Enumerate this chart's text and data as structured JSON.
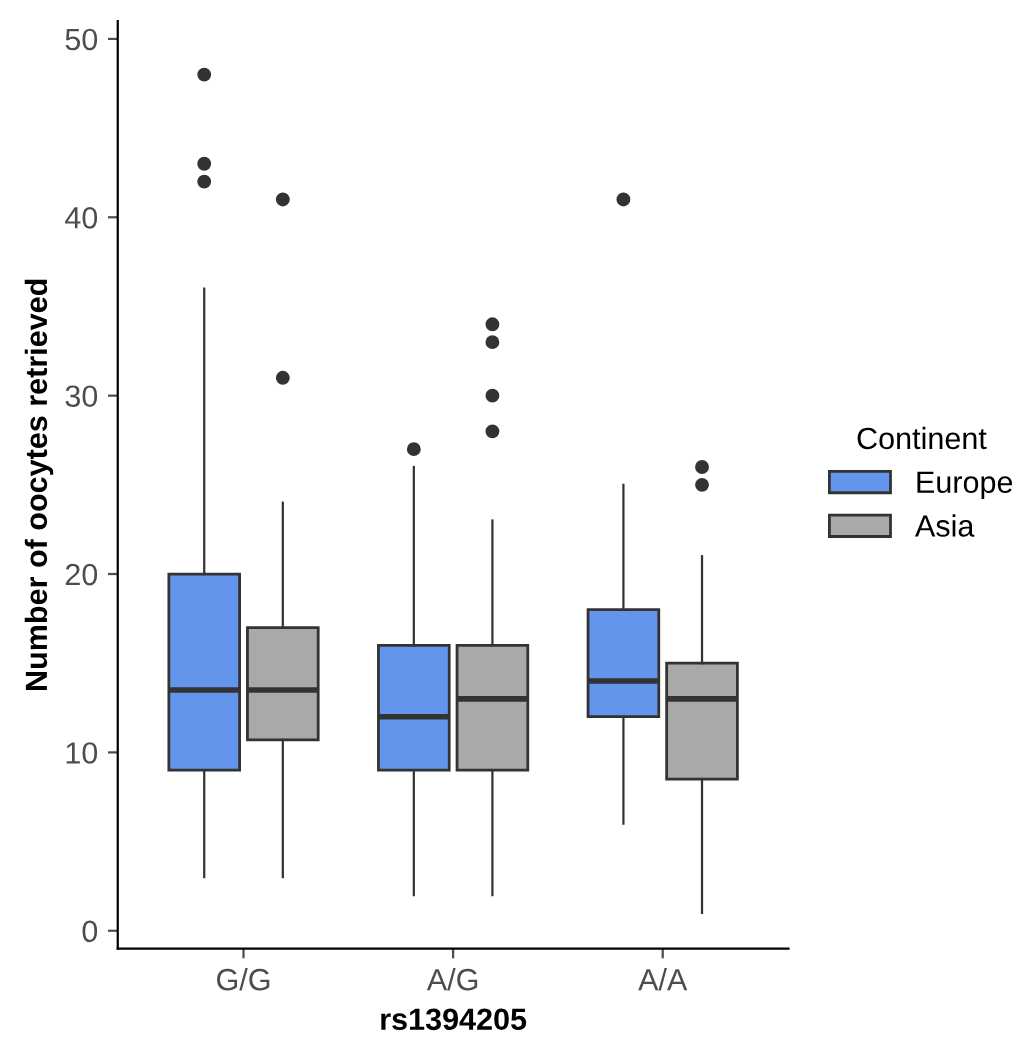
{
  "chart_data": {
    "type": "box",
    "xlabel": "rs1394205",
    "ylabel": "Number of oocytes retrieved",
    "legend_title": "Continent",
    "categories": [
      "G/G",
      "A/G",
      "A/A"
    ],
    "series": [
      {
        "name": "Europe",
        "color": "#6495ed",
        "boxes": [
          {
            "low": 3,
            "q1": 9,
            "median": 13.5,
            "q3": 20,
            "high": 36,
            "outliers": [
              48,
              43,
              42
            ]
          },
          {
            "low": 2,
            "q1": 9,
            "median": 12,
            "q3": 16,
            "high": 26,
            "outliers": [
              27
            ]
          },
          {
            "low": 6,
            "q1": 12,
            "median": 14,
            "q3": 18,
            "high": 25,
            "outliers": [
              41
            ]
          }
        ]
      },
      {
        "name": "Asia",
        "color": "#a9a9a9",
        "boxes": [
          {
            "low": 3,
            "q1": 10.7,
            "median": 13.5,
            "q3": 17,
            "high": 24,
            "outliers": [
              41,
              31
            ]
          },
          {
            "low": 2,
            "q1": 9,
            "median": 13,
            "q3": 16,
            "high": 23,
            "outliers": [
              34,
              33,
              30,
              28
            ]
          },
          {
            "low": 1,
            "q1": 8.5,
            "median": 13,
            "q3": 15,
            "high": 21,
            "outliers": [
              26,
              25
            ]
          }
        ]
      }
    ],
    "ylim": [
      -1,
      51
    ],
    "yticks": [
      0,
      10,
      20,
      30,
      40,
      50
    ],
    "grid": false,
    "legend": "right"
  }
}
